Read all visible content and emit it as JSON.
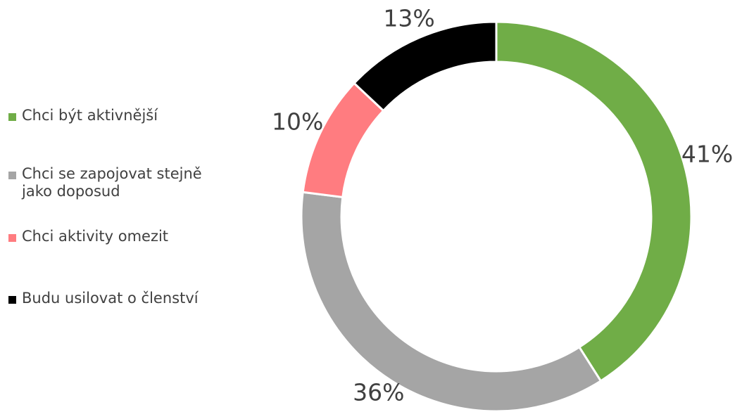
{
  "chart_data": {
    "type": "donut",
    "categories": [
      "Chci být aktivnější",
      "Chci se zapojovat stejně jako doposud",
      "Chci aktivity omezit",
      "Budu usilovat o členství"
    ],
    "values": [
      41,
      36,
      10,
      13
    ],
    "value_labels": [
      "41%",
      "36%",
      "10%",
      "13%"
    ],
    "colors": [
      "#70ad47",
      "#a5a5a5",
      "#ff7c80",
      "#000000"
    ],
    "legend": "left"
  }
}
